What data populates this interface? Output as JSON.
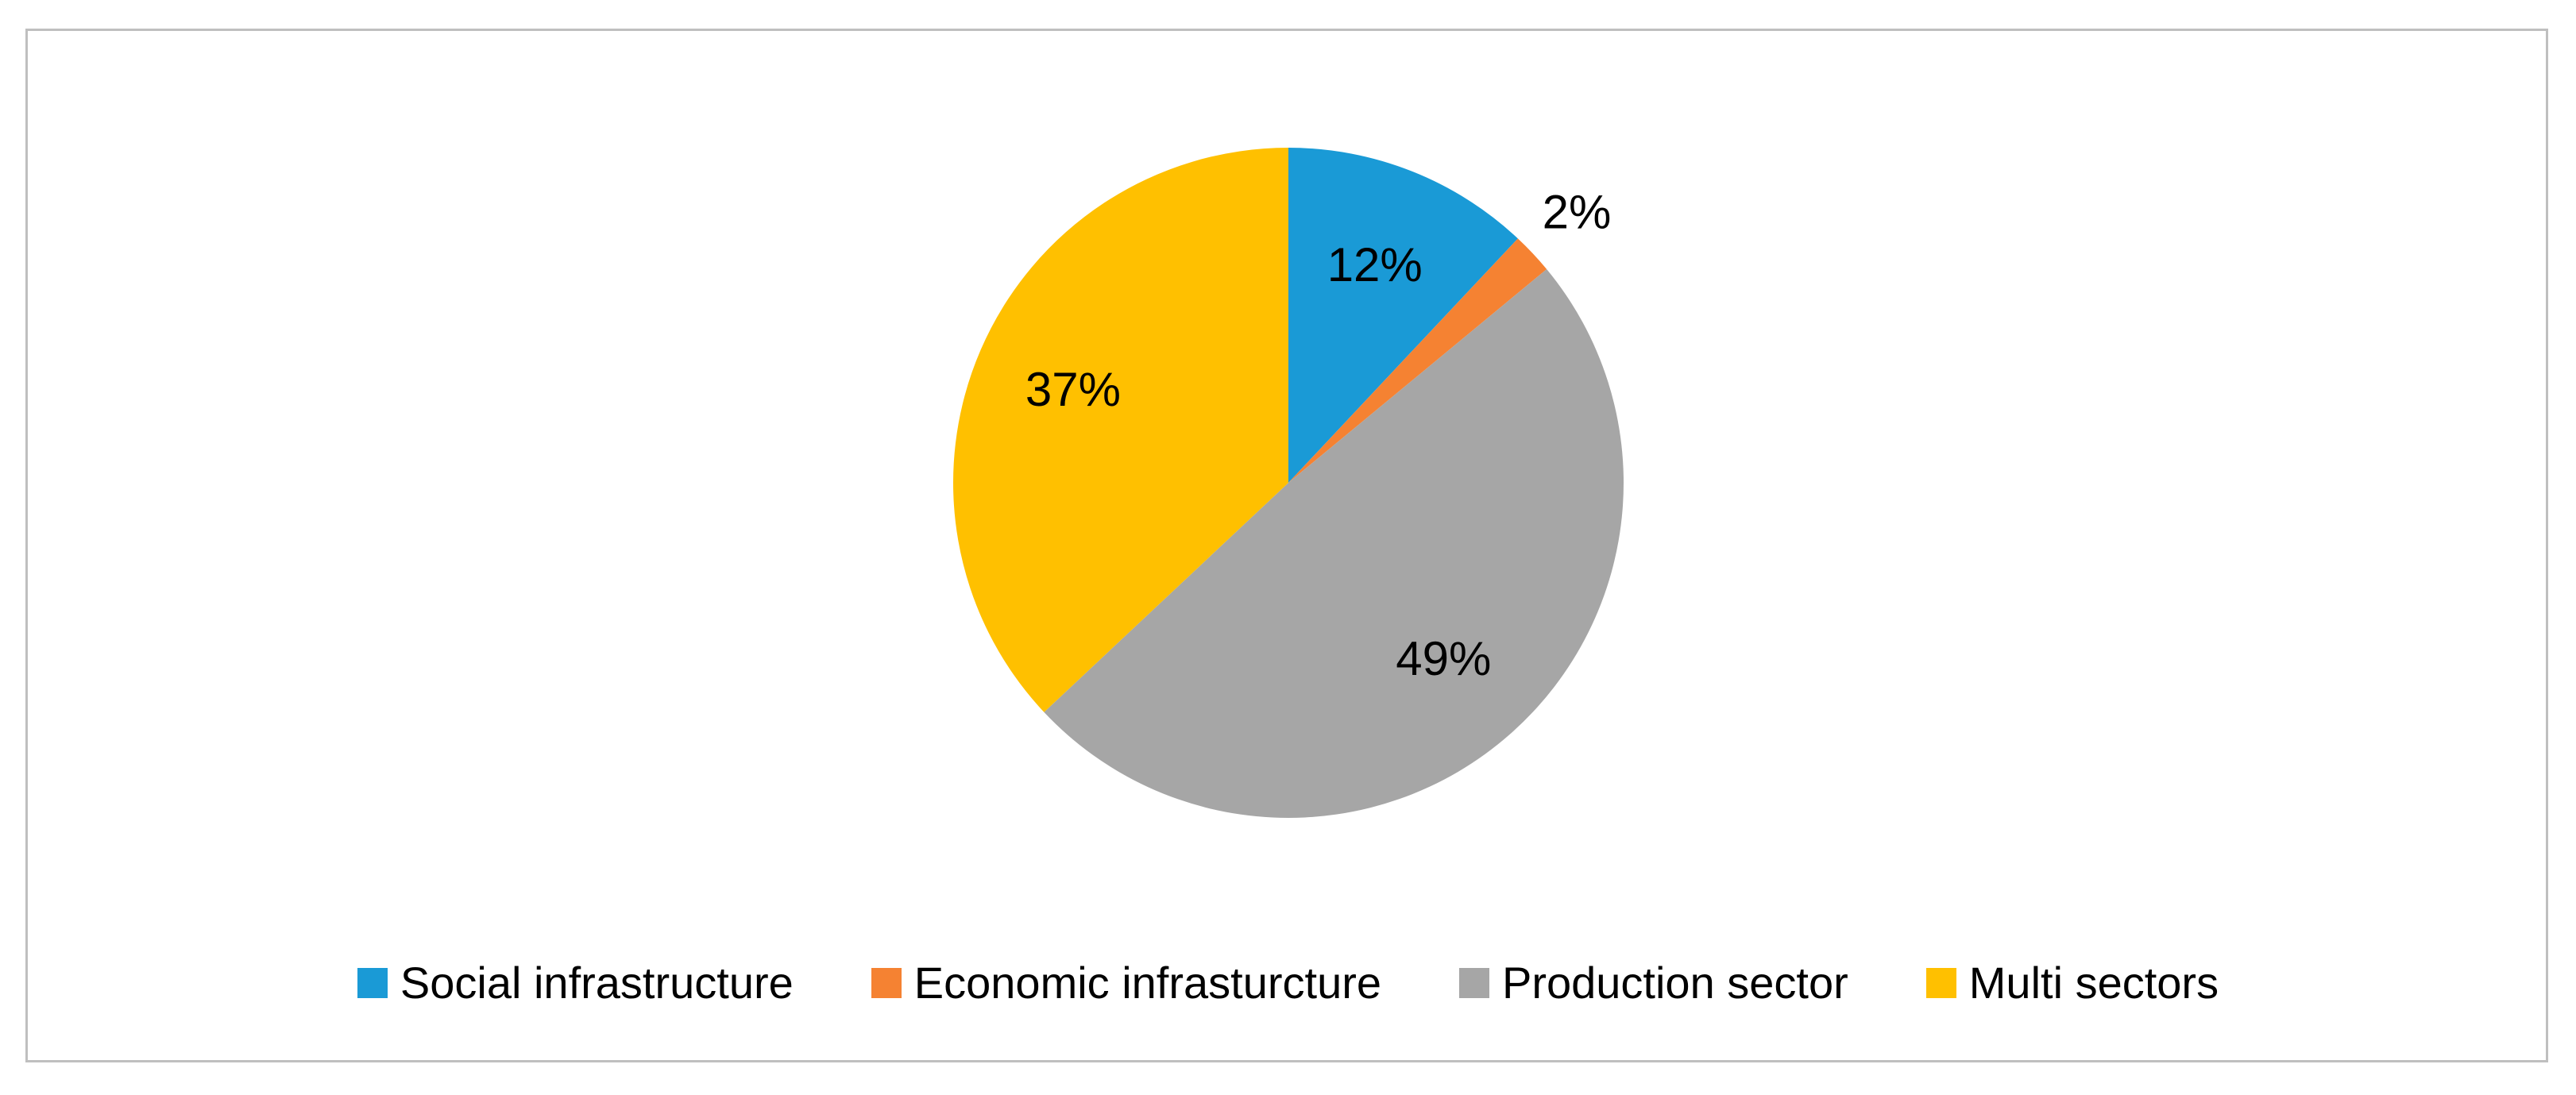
{
  "chart_data": {
    "type": "pie",
    "title": "",
    "categories": [
      "Social infrastructure",
      "Economic infrasturcture",
      "Production sector",
      "Multi sectors"
    ],
    "values": [
      12,
      2,
      49,
      37
    ],
    "data_labels": [
      "12%",
      "2%",
      "49%",
      "37%"
    ],
    "colors": [
      "#1a9ad6",
      "#f58232",
      "#a6a6a6",
      "#ffc000"
    ],
    "start_angle": "12 o'clock",
    "direction": "clockwise",
    "legend_position": "bottom"
  }
}
